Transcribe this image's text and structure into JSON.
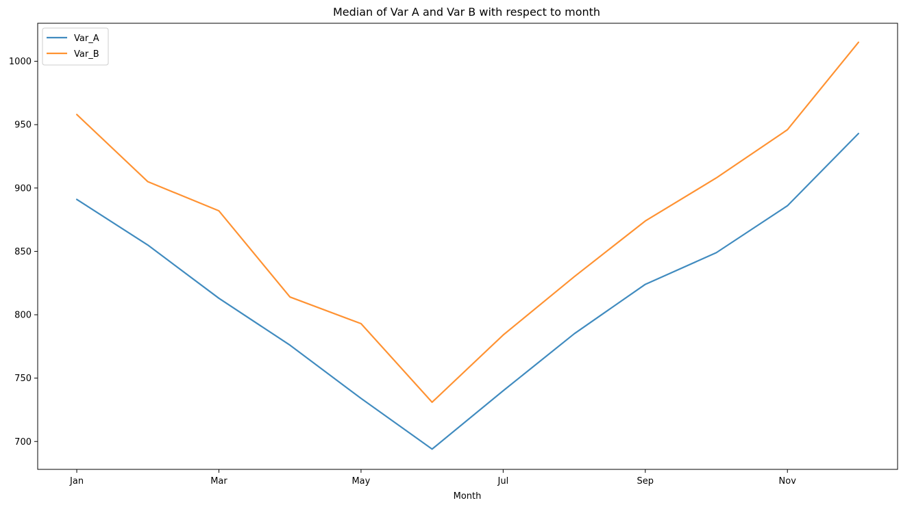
{
  "chart_data": {
    "type": "line",
    "title": "Median of Var A and Var B with respect to month",
    "xlabel": "Month",
    "ylabel": "",
    "x": [
      1,
      2,
      3,
      4,
      5,
      6,
      7,
      8,
      9,
      10,
      11,
      12
    ],
    "xticks": [
      {
        "value": 1,
        "label": "Jan"
      },
      {
        "value": 3,
        "label": "Mar"
      },
      {
        "value": 5,
        "label": "May"
      },
      {
        "value": 7,
        "label": "Jul"
      },
      {
        "value": 9,
        "label": "Sep"
      },
      {
        "value": 11,
        "label": "Nov"
      }
    ],
    "yticks": [
      700,
      750,
      800,
      850,
      900,
      950,
      1000
    ],
    "xlim": [
      0.45,
      12.55
    ],
    "ylim": [
      678,
      1030
    ],
    "grid": false,
    "legend_position": "top-left",
    "series": [
      {
        "name": "Var_A",
        "color": "#1f77b4",
        "values": [
          891,
          855,
          813,
          776,
          734,
          694,
          740,
          785,
          824,
          849,
          886,
          943
        ]
      },
      {
        "name": "Var_B",
        "color": "#ff7f0e",
        "values": [
          958,
          905,
          882,
          814,
          793,
          731,
          784,
          830,
          874,
          908,
          946,
          1015
        ]
      }
    ]
  }
}
